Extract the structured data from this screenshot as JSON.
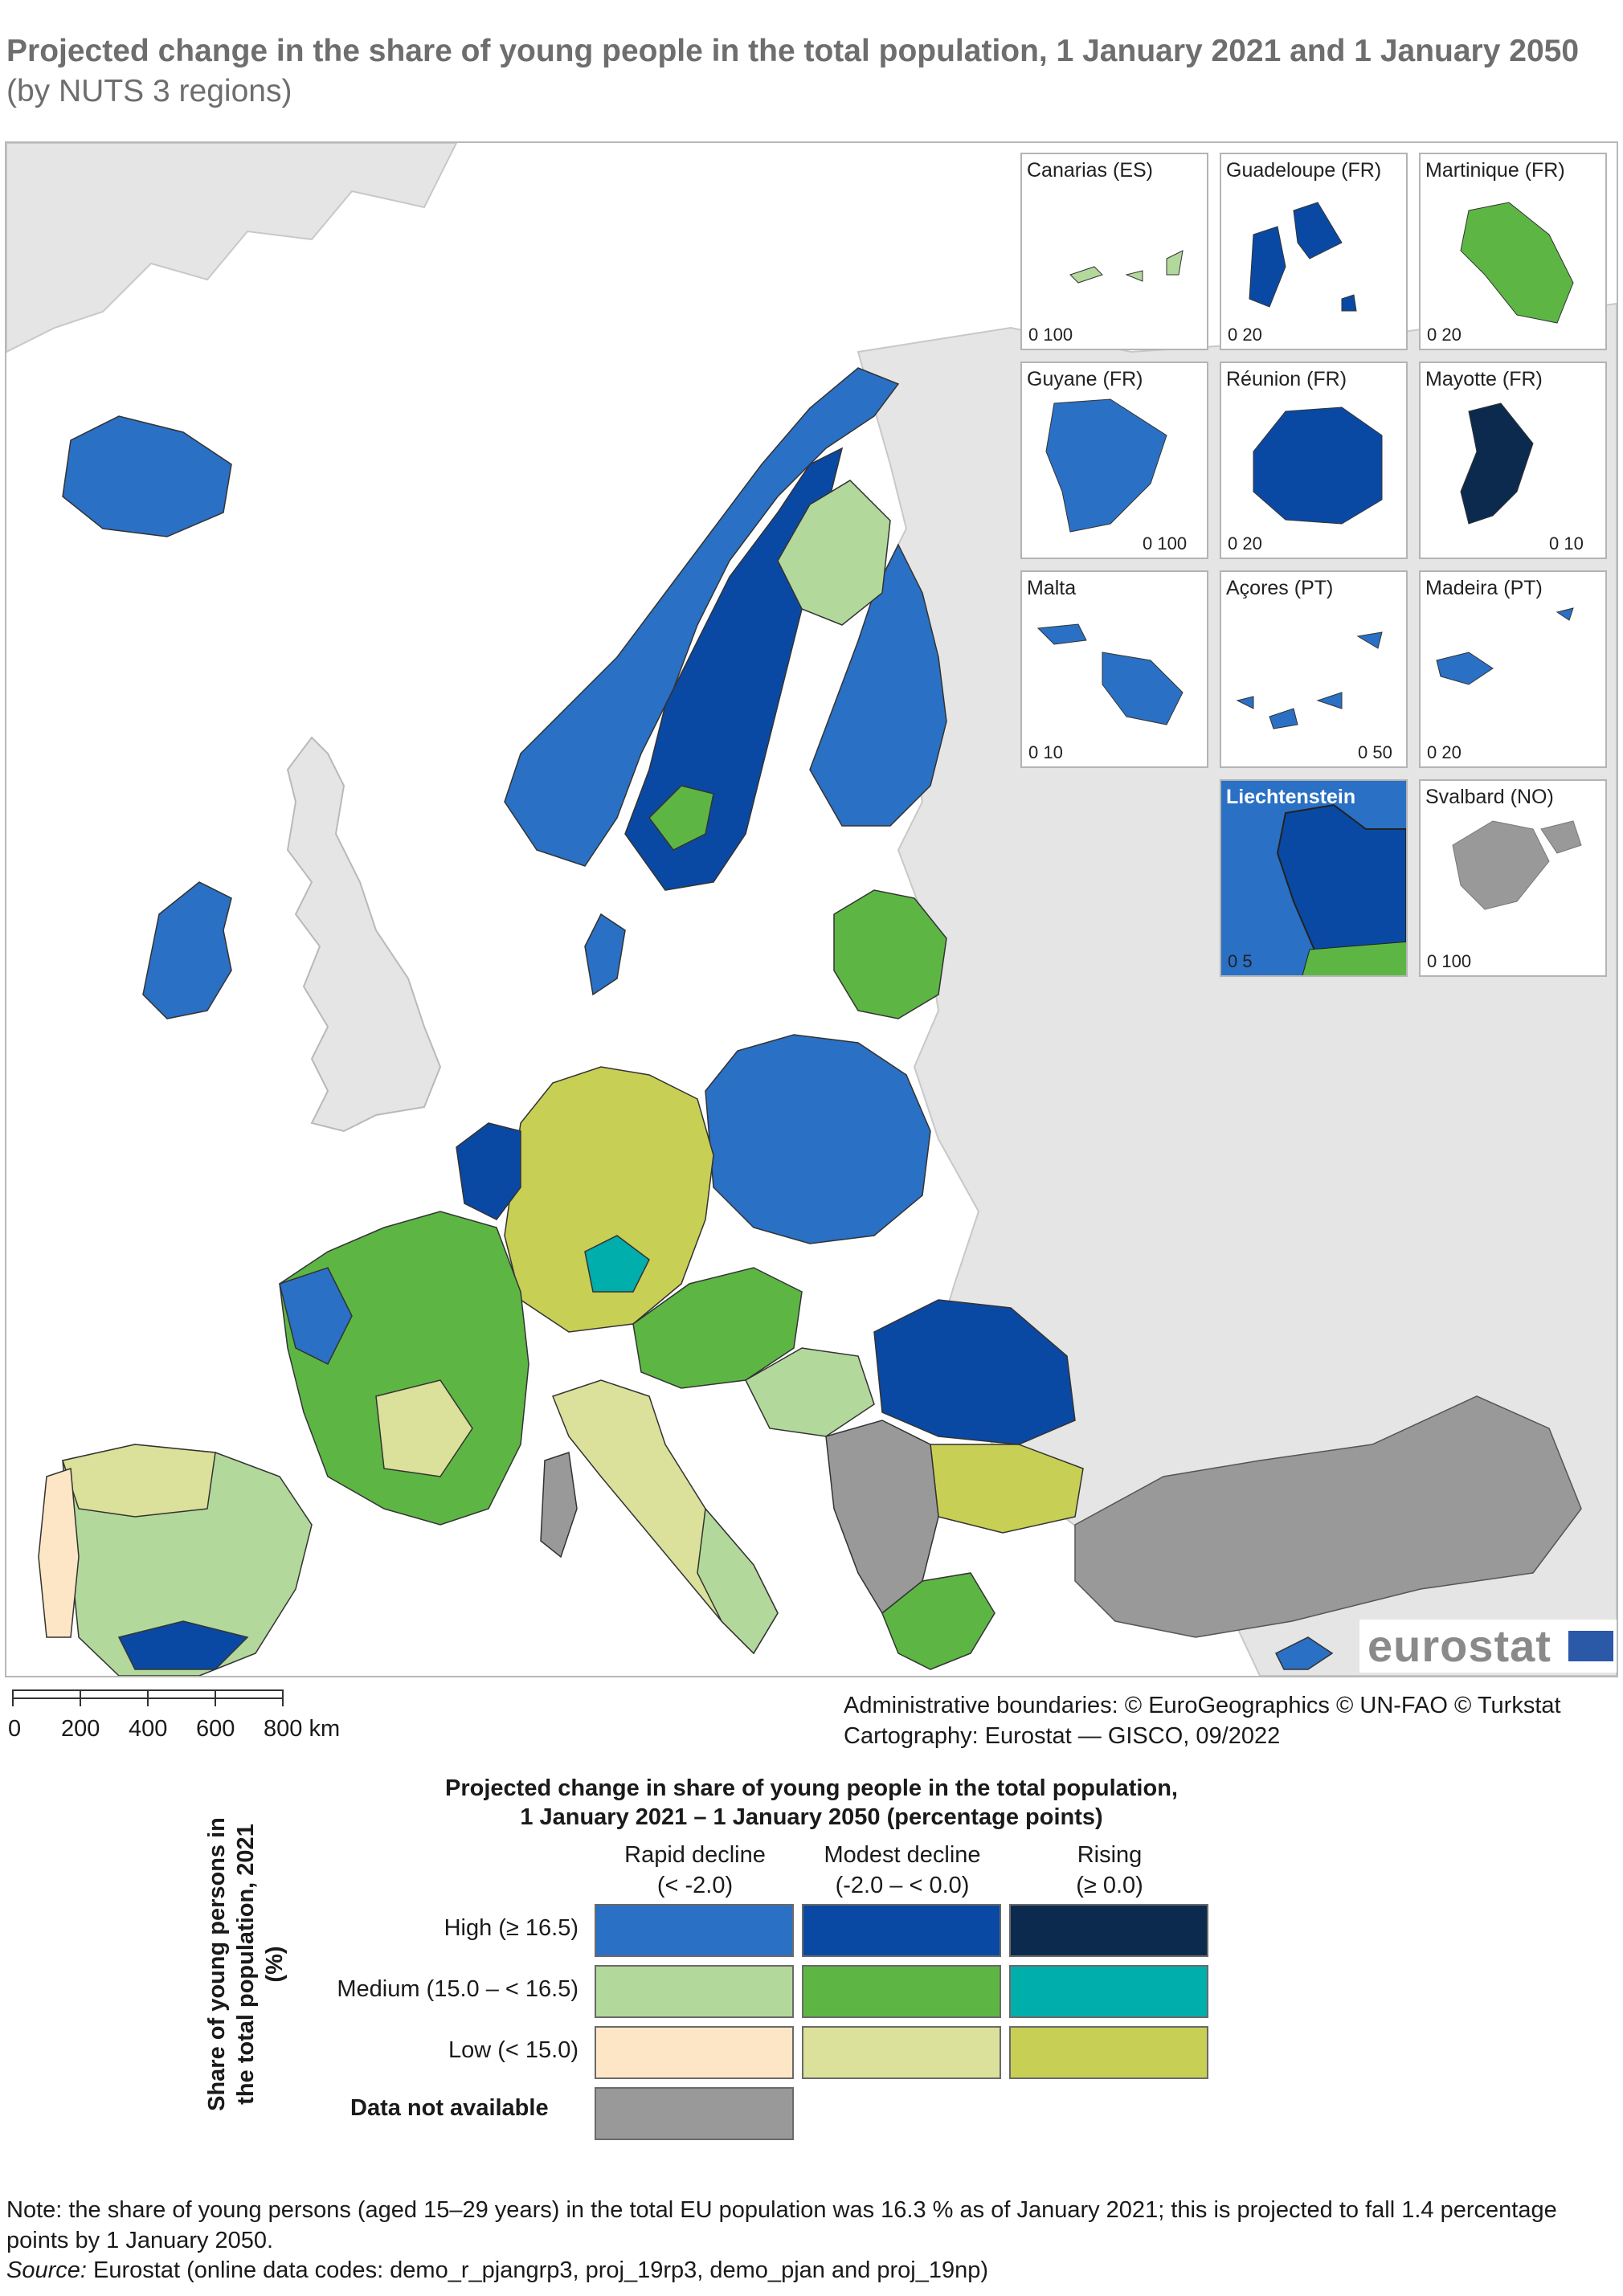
{
  "header": {
    "title": "Projected change in the share of young people in the total population, 1 January 2021 and 1 January 2050",
    "subtitle": "(by NUTS 3 regions)"
  },
  "colors": {
    "sea": "#ffffff",
    "non_eu_land": "#e5e5e5",
    "no_data": "#999999",
    "high_rapid_decline": "#2a70c4",
    "high_modest_decline": "#0a49a3",
    "high_rising": "#0c2a4e",
    "medium_rapid_decline": "#b3d89b",
    "medium_modest_decline": "#5db644",
    "medium_rising": "#00aeac",
    "low_rapid_decline": "#fde6c5",
    "low_modest_decline": "#dbe09a",
    "low_rising": "#c8cf55"
  },
  "insets": [
    {
      "name": "Canarias (ES)",
      "scale": "0  100"
    },
    {
      "name": "Guadeloupe (FR)",
      "scale": "0   20"
    },
    {
      "name": "Martinique (FR)",
      "scale": "0     20"
    },
    {
      "name": "Guyane (FR)",
      "scale": "0  100"
    },
    {
      "name": "Réunion (FR)",
      "scale": "0     20"
    },
    {
      "name": "Mayotte (FR)",
      "scale": "0   10"
    },
    {
      "name": "Malta",
      "scale": "0     10"
    },
    {
      "name": "Açores (PT)",
      "scale": "0   50"
    },
    {
      "name": "Madeira (PT)",
      "scale": "0   20"
    },
    {
      "name": "Liechtenstein",
      "scale": "0   5"
    },
    {
      "name": "Svalbard (NO)",
      "scale": "0  100"
    }
  ],
  "branding": {
    "logo_text": "eurostat"
  },
  "scale": {
    "labels": [
      "0",
      "200",
      "400",
      "600",
      "800 km"
    ]
  },
  "credits": {
    "boundaries": "Administrative boundaries: © EuroGeographics © UN-FAO © Turkstat",
    "cartography": "Cartography: Eurostat — GISCO, 09/2022"
  },
  "legend": {
    "title_line1": "Projected change in share of young people in the total population,",
    "title_line2": "1 January 2021 – 1 January 2050 (percentage points)",
    "side_title": "Share of young persons in the total population, 2021 (%)",
    "columns": [
      {
        "label": "Rapid decline",
        "range": "(< -2.0)"
      },
      {
        "label": "Modest decline",
        "range": "(-2.0 – < 0.0)"
      },
      {
        "label": "Rising",
        "range": "(≥ 0.0)"
      }
    ],
    "rows": [
      {
        "label": "High (≥ 16.5)"
      },
      {
        "label": "Medium (15.0 – < 16.5)"
      },
      {
        "label": "Low (< 15.0)"
      }
    ],
    "no_data_label": "Data not available"
  },
  "footer": {
    "note": "Note: the share of young persons (aged 15–29 years) in the total EU population was 16.3 % as of January 2021; this is projected to fall 1.4 percentage points by 1 January 2050.",
    "source_label": "Source:",
    "source_text": " Eurostat (online data codes: demo_r_pjangrp3, proj_19rp3, demo_pjan and proj_19np)"
  }
}
